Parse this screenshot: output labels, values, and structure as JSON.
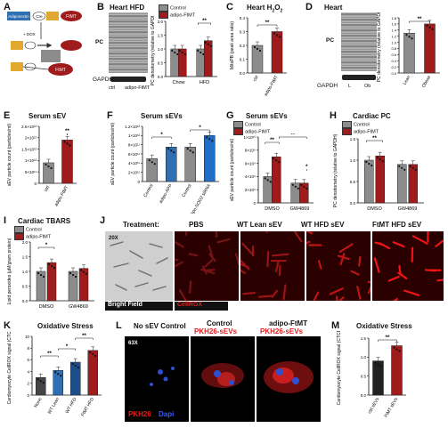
{
  "colors": {
    "control": "#8c8c8c",
    "adipo": "#a01c1c",
    "blue": "#2f6fb3",
    "darkblue": "#1b4e8a",
    "sirna": "#1f6fc7",
    "dark": "#333333"
  },
  "panelA": {
    "letter": "A",
    "boxes": {
      "adiponectin": "Adiponectin",
      "cre": "Cre",
      "floxed": "FtMT",
      "dox": "+ DOX",
      "ftmt_out": "FtMT"
    }
  },
  "panelB": {
    "letter": "B",
    "title": "Heart HFD",
    "legend": [
      "Control",
      "adipo-FtMT"
    ],
    "blot_label": "PC",
    "gapdh": "GAPDH",
    "lanes": [
      "ctrl",
      "adipo-FtMT"
    ],
    "ylabel": "PC densitometry (relative to GAPDH)",
    "groups": [
      "Chow",
      "HFD"
    ],
    "ytick": [
      "0.0",
      "0.5",
      "1.0",
      "1.5",
      "2.0"
    ],
    "sig": "**"
  },
  "panelC": {
    "letter": "C",
    "title_main": "Heart H",
    "title_sub": "2",
    "title_tail": "O",
    "title_sub2": "2",
    "ylabel": "MitoPB (peak area ratio)",
    "xlabels": [
      "ctrl",
      "adipo-FtMT"
    ],
    "sig": "**",
    "ytick": [
      "0.0",
      "0.1",
      "0.2",
      "0.3",
      "0.4"
    ]
  },
  "panelD": {
    "letter": "D",
    "title": "Heart",
    "blot_label": "PC",
    "gapdh": "GAPDH",
    "lanes": [
      "L",
      "Ob"
    ],
    "ylabel": "PC densitometry (relative to GAPDH)",
    "xlabels": [
      "Lean",
      "Obese"
    ],
    "sig": "**",
    "ytick": [
      "0.0",
      "0.2",
      "0.4",
      "0.6",
      "0.8",
      "1.0",
      "1.2",
      "1.4",
      "1.6",
      "1.8"
    ]
  },
  "panelE": {
    "letter": "E",
    "title": "Serum sEV",
    "ylabel": "sEV particle count (particles/ml)",
    "xlabels": [
      "ctrl",
      "adipo-FtMT"
    ],
    "sig": "**",
    "ytick": [
      "0",
      "5×10¹¹",
      "1×10¹²",
      "1.5×10¹²",
      "2×10¹²",
      "2.5×10¹²"
    ]
  },
  "panelF": {
    "letter": "F",
    "title": "Serum sEVs",
    "ylabel": "sEV particle count (particles/ml)",
    "xlabels": [
      "Control",
      "adipo-APP",
      "Control",
      "adipo-SOD2 siRNA"
    ],
    "sig": [
      "*",
      "*"
    ],
    "ytick": [
      "0",
      "2×10¹¹",
      "4×10¹¹",
      "6×10¹¹",
      "8×10¹¹",
      "1×10¹²",
      "1.2×10¹²"
    ]
  },
  "panelG": {
    "letter": "G",
    "title": "Serum sEVs",
    "legend": [
      "Control",
      "adipo-FtMT"
    ],
    "ylabel": "sEV particle count (particles/ml)",
    "groups": [
      "DMSO",
      "GW4869"
    ],
    "sig": [
      "**",
      "**",
      "*"
    ],
    "ytick": [
      "0",
      "2×10⁹",
      "4×10⁹",
      "6×10⁹",
      "8×10⁹",
      "1×10¹⁰"
    ]
  },
  "panelH": {
    "letter": "H",
    "title": "Cardiac PC",
    "legend": [
      "Control",
      "adipo-FtMT"
    ],
    "ylabel": "PC densitometry (relative to GAPDH)",
    "groups": [
      "DMSO",
      "GW4869"
    ],
    "sig": "**",
    "ytick": [
      "0.0",
      "0.5",
      "1.0",
      "1.5"
    ]
  },
  "panelI": {
    "letter": "I",
    "title": "Cardiac TBARS",
    "legend": [
      "Control",
      "adipo-FtMT"
    ],
    "ylabel": "Lipid peroxides (µM/gram protein)",
    "groups": [
      "DMSO",
      "GW4869"
    ],
    "sig": "*",
    "ytick": [
      "0.0",
      "0.5",
      "1.0",
      "1.5",
      "2.0"
    ]
  },
  "panelJ": {
    "letter": "J",
    "treatment_label": "Treatment:",
    "cols": [
      "PBS",
      "WT Lean sEV",
      "WT HFD sEV",
      "FtMT HFD sEV"
    ],
    "mag": "20X",
    "bf_label": "Bright Field",
    "cellrox_label": "CellROX"
  },
  "panelK": {
    "letter": "K",
    "title": "Oxidative Stress",
    "ylabel": "Cardiomyocyte CellROX signal (CTCF)",
    "xlabels": [
      "None",
      "WT Lean",
      "WT HFD",
      "FtMT HFD"
    ],
    "sig": [
      "**",
      "*",
      "**"
    ],
    "ytick": [
      "0",
      "2",
      "4",
      "6",
      "8",
      "10"
    ]
  },
  "panelL": {
    "letter": "L",
    "cols": [
      {
        "title": "No sEV Control",
        "sub": ""
      },
      {
        "title": "Control",
        "sub": "PKH26-sEVs"
      },
      {
        "title": "adipo-FtMT",
        "sub": "PKH26-sEVs"
      }
    ],
    "mag": "63X",
    "pkh": "PKH26",
    "dapi": "Dapi"
  },
  "panelM": {
    "letter": "M",
    "title": "Oxidative Stress",
    "ylabel": "Cardiomyocyte CellROX signal (CTCF)",
    "xlabels": [
      "ctrl sEVs",
      "FtMT sEVs"
    ],
    "sig": "**",
    "ytick": [
      "0.0",
      "0.5",
      "1.0",
      "1.5"
    ]
  },
  "chart_data": [
    {
      "panel": "B",
      "type": "bar",
      "categories": [
        "Chow",
        "HFD"
      ],
      "series": [
        {
          "name": "Control",
          "values": [
            1.0,
            1.0
          ]
        },
        {
          "name": "adipo-FtMT",
          "values": [
            1.0,
            1.3
          ]
        }
      ],
      "ylim": [
        0,
        2
      ]
    },
    {
      "panel": "C",
      "type": "bar",
      "categories": [
        "ctrl",
        "adipo-FtMT"
      ],
      "values": [
        0.2,
        0.3
      ],
      "ylim": [
        0,
        0.4
      ]
    },
    {
      "panel": "D",
      "type": "bar",
      "categories": [
        "Lean",
        "Obese"
      ],
      "values": [
        1.3,
        1.6
      ],
      "ylim": [
        0,
        1.8
      ]
    },
    {
      "panel": "E",
      "type": "bar",
      "categories": [
        "ctrl",
        "adipo-FtMT"
      ],
      "values": [
        900000000000.0,
        1900000000000.0
      ],
      "ylim": [
        0,
        2500000000000.0
      ]
    },
    {
      "panel": "F",
      "type": "bar",
      "categories": [
        "Control",
        "adipo-APP",
        "Control",
        "adipo-SOD2 siRNA"
      ],
      "values": [
        500000000000.0,
        750000000000.0,
        750000000000.0,
        1000000000000.0
      ],
      "ylim": [
        0,
        1200000000000.0
      ]
    },
    {
      "panel": "G",
      "type": "bar",
      "categories": [
        "DMSO",
        "GW4869"
      ],
      "series": [
        {
          "name": "Control",
          "values": [
            4000000000.0,
            3000000000.0
          ]
        },
        {
          "name": "adipo-FtMT",
          "values": [
            7000000000.0,
            3000000000.0
          ]
        }
      ],
      "ylim": [
        0,
        10000000000.0
      ]
    },
    {
      "panel": "H",
      "type": "bar",
      "categories": [
        "DMSO",
        "GW4869"
      ],
      "series": [
        {
          "name": "Control",
          "values": [
            1.0,
            0.9
          ]
        },
        {
          "name": "adipo-FtMT",
          "values": [
            1.1,
            0.9
          ]
        }
      ],
      "ylim": [
        0,
        1.5
      ]
    },
    {
      "panel": "I",
      "type": "bar",
      "categories": [
        "DMSO",
        "GW4869"
      ],
      "series": [
        {
          "name": "Control",
          "values": [
            1.0,
            1.0
          ]
        },
        {
          "name": "adipo-FtMT",
          "values": [
            1.3,
            1.1
          ]
        }
      ],
      "ylim": [
        0,
        2
      ]
    },
    {
      "panel": "K",
      "type": "bar",
      "categories": [
        "None",
        "WT Lean",
        "WT HFD",
        "FtMT HFD"
      ],
      "values": [
        3.0,
        4.2,
        5.6,
        7.6
      ],
      "ylim": [
        0,
        10
      ]
    },
    {
      "panel": "M",
      "type": "bar",
      "categories": [
        "ctrl sEVs",
        "FtMT sEVs"
      ],
      "values": [
        0.9,
        1.3
      ],
      "ylim": [
        0,
        1.5
      ]
    }
  ]
}
